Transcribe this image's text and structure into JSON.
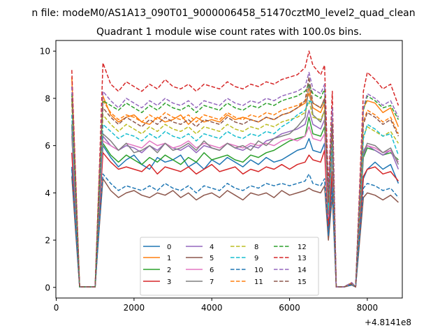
{
  "chart_data": {
    "type": "line",
    "suptitle": "n file: modeM0/AS1A13_090T01_9000006458_51470cztM0_level2_quad_clean",
    "title": "Quadrant 1 module wise count rates with 100.0s bins.",
    "xlabel": "",
    "ylabel": "",
    "x_offset_label": "+4.8141e8",
    "xlim": [
      -10,
      8900
    ],
    "ylim": [
      -0.45,
      10.45
    ],
    "x_ticks": [
      0,
      2000,
      4000,
      6000,
      8000
    ],
    "x_tick_labels": [
      "0",
      "2000",
      "4000",
      "6000",
      "8000"
    ],
    "y_ticks": [
      0,
      2,
      4,
      6,
      8,
      10
    ],
    "y_tick_labels": [
      "0",
      "2",
      "4",
      "6",
      "8",
      "10"
    ],
    "grid": false,
    "legend_position": "lower-center",
    "legend_columns": 4,
    "x_sample": [
      400,
      500,
      600,
      800,
      1000,
      1100,
      1200,
      1400,
      1600,
      1800,
      2000,
      2200,
      2400,
      2600,
      2800,
      3000,
      3200,
      3400,
      3600,
      3800,
      4000,
      4200,
      4400,
      4600,
      4800,
      5000,
      5200,
      5400,
      5600,
      5800,
      6000,
      6200,
      6400,
      6500,
      6600,
      6800,
      6900,
      7000,
      7100,
      7200,
      7400,
      7600,
      7700,
      7900,
      8000,
      8200,
      8400,
      8600,
      8800
    ],
    "series": [
      {
        "name": "0",
        "style": "solid",
        "color": "#1f77b4",
        "values": [
          5.1,
          2.5,
          0.02,
          0.02,
          0.02,
          2.6,
          6.0,
          5.5,
          5.1,
          5.4,
          5.6,
          5.2,
          5.0,
          5.5,
          5.3,
          5.4,
          5.6,
          5.1,
          5.3,
          5.0,
          5.4,
          5.2,
          5.5,
          5.3,
          5.1,
          5.4,
          5.2,
          5.5,
          5.3,
          5.4,
          5.6,
          5.8,
          5.9,
          6.3,
          5.8,
          5.7,
          6.1,
          2.3,
          4.7,
          0.02,
          0.02,
          0.15,
          0.02,
          4.6,
          5.0,
          5.3,
          5.0,
          5.2,
          4.4
        ]
      },
      {
        "name": "1",
        "style": "solid",
        "color": "#ff7f0e",
        "values": [
          8.9,
          4.5,
          0.02,
          0.02,
          0.02,
          4.5,
          8.1,
          7.3,
          7.0,
          7.2,
          7.3,
          7.0,
          6.9,
          7.2,
          7.0,
          7.1,
          7.3,
          6.9,
          7.2,
          7.0,
          7.1,
          7.0,
          7.3,
          7.1,
          7.2,
          7.1,
          7.0,
          7.2,
          7.1,
          7.3,
          7.4,
          7.6,
          7.8,
          8.2,
          7.6,
          7.4,
          7.8,
          3.5,
          6.6,
          0.02,
          0.02,
          0.2,
          0.02,
          7.6,
          7.9,
          7.8,
          7.4,
          7.6,
          6.8
        ]
      },
      {
        "name": "2",
        "style": "solid",
        "color": "#2ca02c",
        "values": [
          6.4,
          3.2,
          0.02,
          0.02,
          0.02,
          3.2,
          6.1,
          5.6,
          5.3,
          5.6,
          5.4,
          5.2,
          5.5,
          5.3,
          5.6,
          5.4,
          5.2,
          5.5,
          5.3,
          5.7,
          5.4,
          5.5,
          5.6,
          5.4,
          5.3,
          5.6,
          5.5,
          5.7,
          5.8,
          6.0,
          6.2,
          6.3,
          6.4,
          7.2,
          6.5,
          6.4,
          6.8,
          3.0,
          5.6,
          0.02,
          0.02,
          0.15,
          0.02,
          5.5,
          5.9,
          5.8,
          5.6,
          5.7,
          5.4
        ]
      },
      {
        "name": "3",
        "style": "solid",
        "color": "#d62728",
        "values": [
          5.7,
          2.8,
          0.02,
          0.02,
          0.02,
          3.0,
          5.7,
          5.3,
          5.0,
          5.1,
          5.0,
          4.9,
          5.2,
          4.8,
          5.1,
          5.0,
          4.9,
          5.1,
          4.8,
          5.0,
          5.2,
          4.9,
          5.0,
          5.1,
          4.8,
          5.0,
          4.9,
          5.1,
          5.0,
          5.2,
          5.0,
          5.2,
          5.3,
          5.6,
          5.4,
          5.3,
          5.8,
          2.5,
          4.9,
          0.02,
          0.02,
          0.1,
          0.02,
          4.7,
          5.0,
          5.1,
          4.8,
          4.9,
          4.5
        ]
      },
      {
        "name": "4",
        "style": "solid",
        "color": "#9467bd",
        "values": [
          6.8,
          3.4,
          0.02,
          0.02,
          0.02,
          3.4,
          6.4,
          6.0,
          5.8,
          6.0,
          5.9,
          5.7,
          6.0,
          5.8,
          6.1,
          5.9,
          5.8,
          6.0,
          5.7,
          6.0,
          5.9,
          5.8,
          6.1,
          5.9,
          5.8,
          6.0,
          5.9,
          6.2,
          6.3,
          6.5,
          6.6,
          6.7,
          6.9,
          7.5,
          6.9,
          6.7,
          7.1,
          3.2,
          5.9,
          0.02,
          0.02,
          0.15,
          0.02,
          5.6,
          6.0,
          5.8,
          5.6,
          5.8,
          5.0
        ]
      },
      {
        "name": "5",
        "style": "solid",
        "color": "#8c564b",
        "values": [
          4.7,
          2.3,
          0.02,
          0.02,
          0.02,
          2.4,
          4.6,
          4.1,
          3.8,
          4.0,
          4.1,
          3.9,
          3.8,
          4.0,
          3.9,
          4.1,
          3.8,
          4.0,
          3.7,
          3.9,
          4.0,
          3.8,
          4.1,
          3.9,
          3.7,
          4.0,
          3.9,
          4.0,
          3.8,
          4.1,
          3.9,
          4.0,
          4.1,
          4.2,
          4.1,
          4.0,
          4.3,
          2.0,
          3.9,
          0.02,
          0.02,
          0.1,
          0.02,
          3.8,
          4.0,
          3.9,
          3.7,
          3.9,
          3.6
        ]
      },
      {
        "name": "6",
        "style": "solid",
        "color": "#e377c2",
        "values": [
          6.5,
          3.2,
          0.02,
          0.02,
          0.02,
          3.3,
          6.2,
          6.0,
          5.8,
          6.1,
          6.0,
          5.9,
          6.2,
          6.0,
          6.1,
          5.9,
          6.0,
          6.2,
          5.9,
          6.1,
          6.0,
          5.9,
          6.1,
          6.0,
          5.9,
          6.1,
          6.0,
          6.1,
          6.0,
          6.2,
          6.3,
          6.2,
          6.4,
          6.8,
          6.3,
          6.2,
          6.5,
          3.0,
          5.8,
          0.02,
          0.02,
          0.15,
          0.02,
          5.8,
          6.0,
          5.9,
          5.7,
          5.8,
          5.3
        ]
      },
      {
        "name": "7",
        "style": "solid",
        "color": "#7f7f7f",
        "values": [
          6.9,
          3.4,
          0.02,
          0.02,
          0.02,
          3.5,
          6.5,
          6.2,
          5.8,
          6.1,
          5.7,
          5.8,
          6.0,
          5.7,
          6.1,
          5.8,
          5.9,
          6.1,
          5.8,
          6.2,
          5.9,
          5.8,
          6.1,
          5.9,
          6.0,
          5.8,
          6.2,
          6.0,
          6.3,
          6.4,
          6.5,
          6.8,
          7.2,
          8.6,
          7.3,
          7.0,
          7.5,
          3.1,
          6.0,
          0.02,
          0.02,
          0.15,
          0.02,
          5.7,
          6.1,
          6.0,
          5.7,
          5.9,
          5.2
        ]
      },
      {
        "name": "8",
        "style": "dashed",
        "color": "#bcbd22",
        "values": [
          7.8,
          3.9,
          0.02,
          0.02,
          0.02,
          3.9,
          7.3,
          6.9,
          6.6,
          6.9,
          6.7,
          6.5,
          6.8,
          6.6,
          6.9,
          6.7,
          6.6,
          6.8,
          6.5,
          6.8,
          6.7,
          6.6,
          6.9,
          6.7,
          6.6,
          6.8,
          6.7,
          6.9,
          6.8,
          7.0,
          7.1,
          7.2,
          7.4,
          7.9,
          7.2,
          7.1,
          7.5,
          3.4,
          6.4,
          0.02,
          0.02,
          0.15,
          0.02,
          6.4,
          6.8,
          6.6,
          6.4,
          6.6,
          6.1
        ]
      },
      {
        "name": "9",
        "style": "dashed",
        "color": "#17becf",
        "values": [
          7.3,
          3.6,
          0.02,
          0.02,
          0.02,
          3.6,
          6.9,
          6.6,
          6.3,
          6.5,
          6.4,
          6.2,
          6.5,
          6.3,
          6.6,
          6.4,
          6.3,
          6.5,
          6.2,
          6.5,
          6.4,
          6.3,
          6.6,
          6.4,
          6.3,
          6.5,
          6.4,
          6.6,
          6.5,
          6.8,
          7.0,
          7.3,
          7.5,
          7.9,
          7.8,
          7.6,
          7.9,
          3.3,
          6.2,
          0.02,
          0.02,
          0.15,
          0.02,
          6.3,
          6.9,
          6.7,
          6.4,
          6.5,
          5.6
        ]
      },
      {
        "name": "10",
        "style": "dashed",
        "color": "#1f77b4",
        "values": [
          5.0,
          2.5,
          0.02,
          0.02,
          0.02,
          2.5,
          4.8,
          4.4,
          4.1,
          4.3,
          4.2,
          4.1,
          4.3,
          4.1,
          4.4,
          4.2,
          4.1,
          4.3,
          4.0,
          4.3,
          4.2,
          4.1,
          4.4,
          4.2,
          4.1,
          4.3,
          4.2,
          4.4,
          4.3,
          4.4,
          4.3,
          4.4,
          4.5,
          4.8,
          4.4,
          4.3,
          4.6,
          2.2,
          4.2,
          0.02,
          0.02,
          0.1,
          0.02,
          4.2,
          4.4,
          4.3,
          4.1,
          4.2,
          3.8
        ]
      },
      {
        "name": "11",
        "style": "dashed",
        "color": "#ff7f0e",
        "values": [
          8.5,
          4.2,
          0.02,
          0.02,
          0.02,
          4.2,
          7.9,
          7.4,
          7.1,
          7.3,
          7.2,
          7.0,
          7.3,
          7.1,
          7.4,
          7.2,
          7.1,
          7.3,
          7.0,
          7.3,
          7.2,
          7.1,
          7.4,
          7.2,
          7.1,
          7.3,
          7.2,
          7.4,
          7.3,
          7.5,
          7.6,
          7.7,
          7.9,
          8.4,
          7.8,
          7.6,
          8.0,
          3.6,
          7.0,
          0.02,
          0.02,
          0.2,
          0.02,
          7.0,
          7.5,
          7.3,
          7.0,
          7.2,
          6.5
        ]
      },
      {
        "name": "12",
        "style": "dashed",
        "color": "#2ca02c",
        "values": [
          8.2,
          4.1,
          0.02,
          0.02,
          0.02,
          4.1,
          7.9,
          7.7,
          7.5,
          7.8,
          7.6,
          7.4,
          7.7,
          7.5,
          7.8,
          7.6,
          7.5,
          7.7,
          7.4,
          7.7,
          7.6,
          7.5,
          7.8,
          7.6,
          7.5,
          7.7,
          7.6,
          7.8,
          7.7,
          7.9,
          8.0,
          8.1,
          8.3,
          8.6,
          8.2,
          8.0,
          8.4,
          3.8,
          7.3,
          0.02,
          0.02,
          0.2,
          0.02,
          7.5,
          8.1,
          7.9,
          7.6,
          7.7,
          7.1
        ]
      },
      {
        "name": "13",
        "style": "dashed",
        "color": "#d62728",
        "values": [
          9.2,
          4.6,
          0.02,
          0.02,
          0.02,
          4.6,
          9.5,
          8.6,
          8.3,
          8.7,
          8.5,
          8.3,
          8.6,
          8.4,
          8.8,
          8.5,
          8.4,
          8.6,
          8.3,
          8.6,
          8.5,
          8.4,
          8.7,
          8.5,
          8.4,
          8.6,
          8.5,
          8.7,
          8.6,
          8.8,
          8.9,
          9.0,
          9.3,
          10.0,
          9.4,
          9.0,
          9.4,
          4.2,
          8.3,
          0.02,
          0.02,
          0.2,
          0.02,
          8.3,
          9.1,
          8.8,
          8.4,
          8.6,
          7.7
        ]
      },
      {
        "name": "14",
        "style": "dashed",
        "color": "#9467bd",
        "values": [
          8.5,
          4.2,
          0.02,
          0.02,
          0.02,
          4.2,
          8.3,
          7.9,
          7.6,
          8.0,
          7.8,
          7.6,
          7.9,
          7.7,
          8.0,
          7.8,
          7.7,
          7.9,
          7.6,
          7.9,
          7.8,
          7.7,
          8.0,
          7.8,
          7.7,
          7.9,
          7.8,
          8.0,
          7.9,
          8.1,
          8.2,
          8.3,
          8.5,
          9.1,
          8.4,
          8.2,
          8.6,
          3.9,
          7.6,
          0.02,
          0.02,
          0.2,
          0.02,
          7.6,
          8.2,
          8.0,
          7.7,
          7.9,
          7.2
        ]
      },
      {
        "name": "15",
        "style": "dashed",
        "color": "#8c564b",
        "values": [
          8.0,
          4.0,
          0.02,
          0.02,
          0.02,
          4.0,
          7.6,
          7.2,
          6.9,
          7.2,
          7.0,
          6.8,
          7.1,
          6.9,
          7.2,
          7.0,
          6.9,
          7.1,
          6.8,
          7.1,
          7.0,
          6.9,
          7.2,
          7.0,
          6.9,
          7.1,
          7.0,
          7.2,
          7.1,
          7.3,
          7.4,
          7.6,
          7.9,
          8.9,
          7.8,
          7.6,
          8.0,
          3.6,
          6.9,
          0.02,
          0.02,
          0.15,
          0.02,
          6.9,
          7.4,
          7.2,
          6.9,
          7.1,
          6.4
        ]
      }
    ]
  }
}
